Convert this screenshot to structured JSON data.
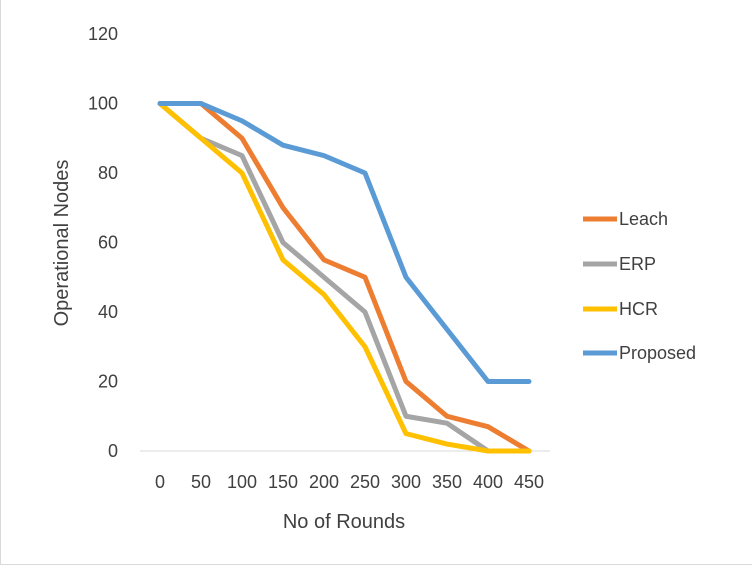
{
  "chart_data": {
    "type": "line",
    "title": "",
    "xlabel": "No of Rounds",
    "ylabel": "Operational Nodes",
    "categories": [
      "0",
      "50",
      "100",
      "150",
      "200",
      "250",
      "300",
      "350",
      "400",
      "450"
    ],
    "ylim": [
      0,
      120
    ],
    "yticks": [
      "0",
      "20",
      "40",
      "60",
      "80",
      "100",
      "120"
    ],
    "grid": false,
    "legend_position": "right",
    "series": [
      {
        "name": "Leach",
        "color": "#ED7D31",
        "values": [
          100,
          100,
          90,
          70,
          55,
          50,
          20,
          10,
          7,
          0
        ]
      },
      {
        "name": "ERP",
        "color": "#A5A5A5",
        "values": [
          100,
          90,
          85,
          60,
          50,
          40,
          10,
          8,
          0,
          0
        ]
      },
      {
        "name": "HCR",
        "color": "#FFC000",
        "values": [
          100,
          90,
          80,
          55,
          45,
          30,
          5,
          2,
          0,
          0
        ]
      },
      {
        "name": "Proposed",
        "color": "#5B9BD5",
        "values": [
          100,
          100,
          95,
          88,
          85,
          80,
          50,
          35,
          20,
          20
        ]
      }
    ]
  }
}
